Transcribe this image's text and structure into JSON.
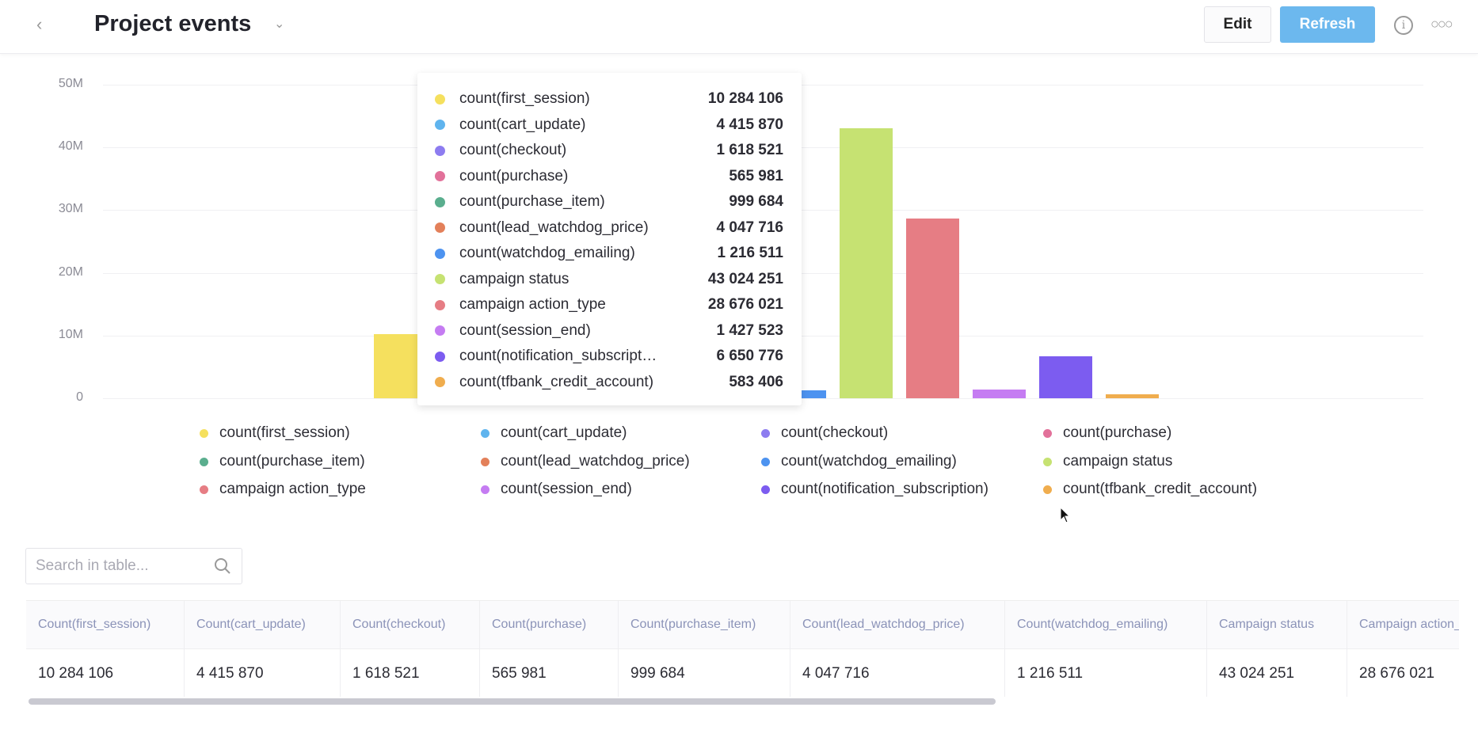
{
  "header": {
    "back_icon": "chevron-left-icon",
    "title": "Project events",
    "edit_label": "Edit",
    "refresh_label": "Refresh",
    "info_icon": "info-icon",
    "more_icon": "more-dots-icon"
  },
  "chart_data": {
    "type": "bar",
    "title": "",
    "ylim": [
      0,
      50000000
    ],
    "yticks": [
      "0",
      "10M",
      "20M",
      "30M",
      "40M",
      "50M"
    ],
    "grid": true,
    "legend_placement": "bottom",
    "series": [
      {
        "name": "count(first_session)",
        "value": 10284106,
        "display": "10 284 106",
        "color": "#f5e05e"
      },
      {
        "name": "count(cart_update)",
        "value": 4415870,
        "display": "4 415 870",
        "color": "#5fb4ee"
      },
      {
        "name": "count(checkout)",
        "value": 1618521,
        "display": "1 618 521",
        "color": "#8d7cf0"
      },
      {
        "name": "count(purchase)",
        "value": 565981,
        "display": "565 981",
        "color": "#e2719a"
      },
      {
        "name": "count(purchase_item)",
        "value": 999684,
        "display": "999 684",
        "color": "#5aae8e"
      },
      {
        "name": "count(lead_watchdog_price)",
        "value": 4047716,
        "display": "4 047 716",
        "color": "#e3805a"
      },
      {
        "name": "count(watchdog_emailing)",
        "value": 1216511,
        "display": "1 216 511",
        "color": "#4d93f0"
      },
      {
        "name": "campaign status",
        "value": 43024251,
        "display": "43 024 251",
        "color": "#c6e272"
      },
      {
        "name": "campaign action_type",
        "value": 28676021,
        "display": "28 676 021",
        "color": "#e67d84"
      },
      {
        "name": "count(session_end)",
        "value": 1427523,
        "display": "1 427 523",
        "color": "#c57cf2"
      },
      {
        "name": "count(notification_subscription)",
        "value": 6650776,
        "display": "6 650 776",
        "color": "#7c5cf0"
      },
      {
        "name": "count(tfbank_credit_account)",
        "value": 583406,
        "display": "583 406",
        "color": "#f0ad4e"
      }
    ]
  },
  "tooltip_labels": [
    "count(first_session)",
    "count(cart_update)",
    "count(checkout)",
    "count(purchase)",
    "count(purchase_item)",
    "count(lead_watchdog_price)",
    "count(watchdog_emailing)",
    "campaign status",
    "campaign action_type",
    "count(session_end)",
    "count(notification_subscripti...",
    "count(tfbank_credit_account)"
  ],
  "search": {
    "placeholder": "Search in table...",
    "value": ""
  },
  "table": {
    "columns": [
      "Count(first_session)",
      "Count(cart_update)",
      "Count(checkout)",
      "Count(purchase)",
      "Count(purchase_item)",
      "Count(lead_watchdog_price)",
      "Count(watchdog_emailing)",
      "Campaign status",
      "Campaign action_type"
    ],
    "rows": [
      [
        "10 284 106",
        "4 415 870",
        "1 618 521",
        "565 981",
        "999 684",
        "4 047 716",
        "1 216 511",
        "43 024 251",
        "28 676 021"
      ]
    ]
  }
}
